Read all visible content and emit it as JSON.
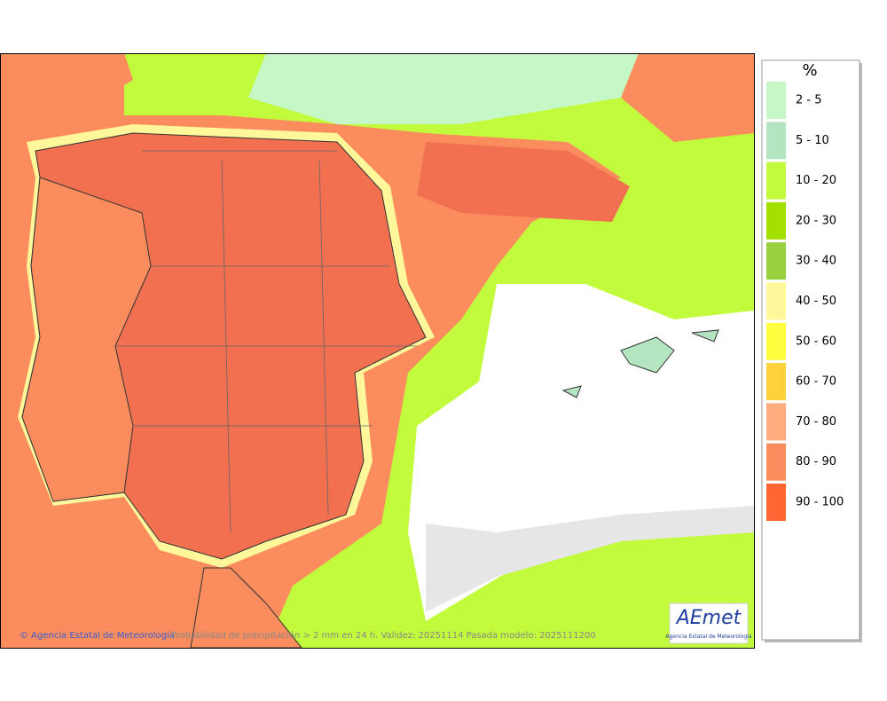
{
  "map": {
    "footer": {
      "credit": "© Agencia Estatal de Meteorología",
      "caption": "Probabilidad de precipitación > 2 mm en 24 h. Validez: 20251114 Pasada modelo: 2025111200"
    },
    "logo": {
      "name": "AEmet",
      "subtitle": "Agencia Estatal de Meteorología"
    },
    "legend": {
      "title": "%",
      "items": [
        {
          "label": "2 - 5",
          "color": "#c6f7c6"
        },
        {
          "label": "5 - 10",
          "color": "#b3e6c0"
        },
        {
          "label": "10 - 20",
          "color": "#c2fa3c"
        },
        {
          "label": "20 - 30",
          "color": "#a3e000"
        },
        {
          "label": "30 - 40",
          "color": "#98d040"
        },
        {
          "label": "40 - 50",
          "color": "#fff79a"
        },
        {
          "label": "50 - 60",
          "color": "#ffff40"
        },
        {
          "label": "60 - 70",
          "color": "#ffd23c"
        },
        {
          "label": "70 - 80",
          "color": "#ffad7e"
        },
        {
          "label": "80 - 90",
          "color": "#fb8c5e"
        },
        {
          "label": "90 - 100",
          "color": "#ff6633"
        }
      ]
    }
  }
}
